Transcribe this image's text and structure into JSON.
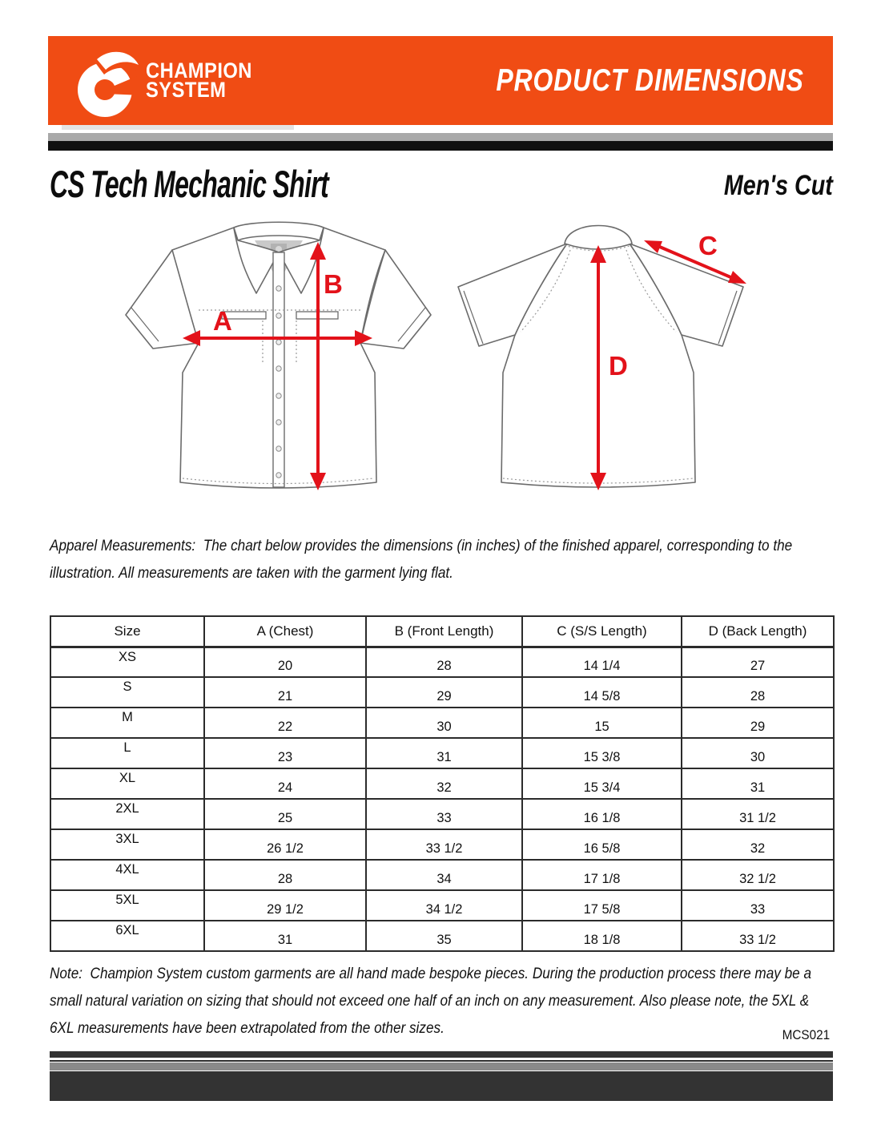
{
  "header": {
    "brand_line1": "CHAMPION",
    "brand_line2": "SYSTEM",
    "banner_title": "PRODUCT DIMENSIONS"
  },
  "title": "CS Tech Mechanic Shirt",
  "cut_label": "Men's Cut",
  "diagram": {
    "label_a": "A",
    "label_b": "B",
    "label_c": "C",
    "label_d": "D"
  },
  "intro": {
    "label": "Apparel Measurements:",
    "text": "The chart below provides the dimensions (in inches) of the finished apparel, corresponding to the illustration. All measurements are taken with the garment lying flat."
  },
  "table": {
    "headers": [
      "Size",
      "A (Chest)",
      "B (Front Length)",
      "C (S/S Length)",
      "D (Back Length)"
    ],
    "rows": [
      {
        "size": "XS",
        "values": [
          "20",
          "28",
          "14 1/4",
          "27"
        ]
      },
      {
        "size": "S",
        "values": [
          "21",
          "29",
          "14 5/8",
          "28"
        ]
      },
      {
        "size": "M",
        "values": [
          "22",
          "30",
          "15",
          "29"
        ]
      },
      {
        "size": "L",
        "values": [
          "23",
          "31",
          "15 3/8",
          "30"
        ]
      },
      {
        "size": "XL",
        "values": [
          "24",
          "32",
          "15 3/4",
          "31"
        ]
      },
      {
        "size": "2XL",
        "values": [
          "25",
          "33",
          "16 1/8",
          "31 1/2"
        ]
      },
      {
        "size": "3XL",
        "values": [
          "26 1/2",
          "33 1/2",
          "16 5/8",
          "32"
        ]
      },
      {
        "size": "4XL",
        "values": [
          "28",
          "34",
          "17 1/8",
          "32 1/2"
        ]
      },
      {
        "size": "5XL",
        "values": [
          "29 1/2",
          "34 1/2",
          "17 5/8",
          "33"
        ]
      },
      {
        "size": "6XL",
        "values": [
          "31",
          "35",
          "18 1/8",
          "33 1/2"
        ]
      }
    ]
  },
  "note": {
    "label": "Note:",
    "text": "Champion System custom garments are all hand made bespoke pieces. During the production process there may be a small natural variation on sizing that should not exceed one half of an inch on any measurement. Also please note, the 5XL & 6XL measurements have been extrapolated from the other sizes."
  },
  "doc_code": "MCS021",
  "colors": {
    "orange": "#F04C14",
    "arrow_red": "#E3121A",
    "bar_gray": "#A9A9A9",
    "bar_black": "#111111",
    "footer_dark": "#333333",
    "footer_gray": "#8A8A8A"
  }
}
